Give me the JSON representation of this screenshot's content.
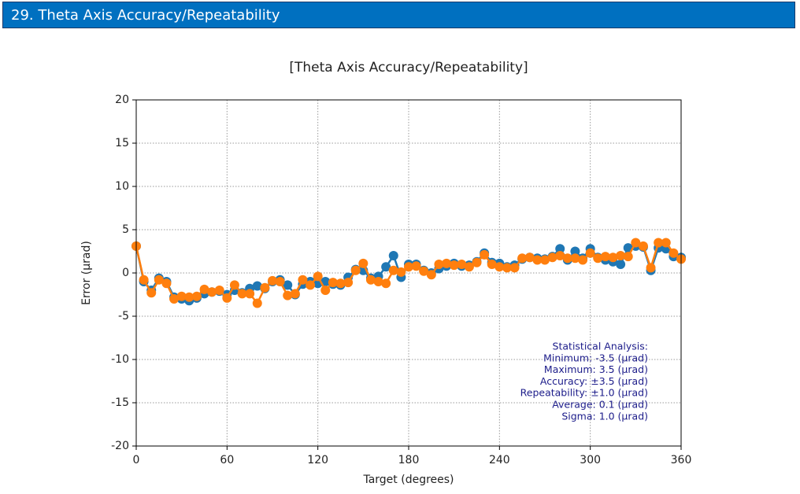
{
  "header": {
    "title": "29. Theta Axis Accuracy/Repeatability"
  },
  "chart_data": {
    "type": "line",
    "title": "[Theta Axis Accuracy/Repeatability]",
    "x_label": "Target (degrees)",
    "y_label": "Error (µrad)",
    "x": [
      0,
      5,
      10,
      15,
      20,
      25,
      30,
      35,
      40,
      45,
      50,
      55,
      60,
      65,
      70,
      75,
      80,
      85,
      90,
      95,
      100,
      105,
      110,
      115,
      120,
      125,
      130,
      135,
      140,
      145,
      150,
      155,
      160,
      165,
      170,
      175,
      180,
      185,
      190,
      195,
      200,
      205,
      210,
      215,
      220,
      225,
      230,
      235,
      240,
      245,
      250,
      255,
      260,
      265,
      270,
      275,
      280,
      285,
      290,
      295,
      300,
      305,
      310,
      315,
      320,
      325,
      330,
      335,
      340,
      345,
      350,
      355,
      360
    ],
    "series": [
      {
        "color": "#1f77b4",
        "values": [
          3.1,
          -1.0,
          -2.0,
          -0.6,
          -1.0,
          -2.8,
          -3.0,
          -3.2,
          -2.9,
          -2.4,
          -2.2,
          -2.1,
          -2.5,
          -2.0,
          -2.3,
          -1.8,
          -1.5,
          -1.8,
          -1.0,
          -0.8,
          -1.4,
          -2.5,
          -1.3,
          -1.0,
          -1.2,
          -1.0,
          -1.3,
          -1.4,
          -0.5,
          0.4,
          0.3,
          -0.6,
          -0.4,
          0.7,
          2.0,
          -0.5,
          1.0,
          1.0,
          0.3,
          0.0,
          0.5,
          0.8,
          1.1,
          0.8,
          0.9,
          1.3,
          2.3,
          1.2,
          1.1,
          0.7,
          0.9,
          1.6,
          1.8,
          1.7,
          1.6,
          1.9,
          2.8,
          1.5,
          2.5,
          1.7,
          2.8,
          1.8,
          1.5,
          1.3,
          1.0,
          2.9,
          3.1,
          3.0,
          0.3,
          2.9,
          2.8,
          1.9,
          1.8
        ]
      },
      {
        "color": "#ff7f0e",
        "values": [
          3.1,
          -0.8,
          -2.3,
          -0.8,
          -1.2,
          -3.0,
          -2.7,
          -2.8,
          -2.7,
          -1.9,
          -2.2,
          -2.0,
          -2.9,
          -1.4,
          -2.4,
          -2.4,
          -3.5,
          -1.7,
          -0.9,
          -1.0,
          -2.6,
          -2.4,
          -0.8,
          -1.4,
          -0.4,
          -2.0,
          -1.1,
          -1.2,
          -1.1,
          0.3,
          1.1,
          -0.8,
          -1.0,
          -1.2,
          0.3,
          0.1,
          0.7,
          0.8,
          0.2,
          -0.2,
          1.0,
          1.1,
          0.9,
          1.0,
          0.7,
          1.2,
          2.1,
          1.0,
          0.7,
          0.6,
          0.6,
          1.7,
          1.8,
          1.5,
          1.5,
          1.8,
          2.0,
          1.7,
          1.7,
          1.5,
          2.3,
          1.7,
          1.9,
          1.8,
          2.0,
          1.9,
          3.5,
          3.1,
          0.6,
          3.5,
          3.5,
          2.3,
          1.6
        ]
      }
    ],
    "xlim": [
      0,
      360
    ],
    "xticks": [
      0,
      60,
      120,
      180,
      240,
      300,
      360
    ],
    "ylim": [
      -20,
      20
    ],
    "yticks": [
      -20,
      -15,
      -10,
      -5,
      0,
      5,
      10,
      15,
      20
    ],
    "grid": true,
    "annotations": [
      "Statistical Analysis:",
      "Minimum: -3.5 (µrad)",
      "Maximum: 3.5 (µrad)",
      "Accuracy: ±3.5 (µrad)",
      "Repeatability: ±1.0 (µrad)",
      "Average: 0.1 (µrad)",
      "Sigma: 1.0 (µrad)"
    ]
  }
}
